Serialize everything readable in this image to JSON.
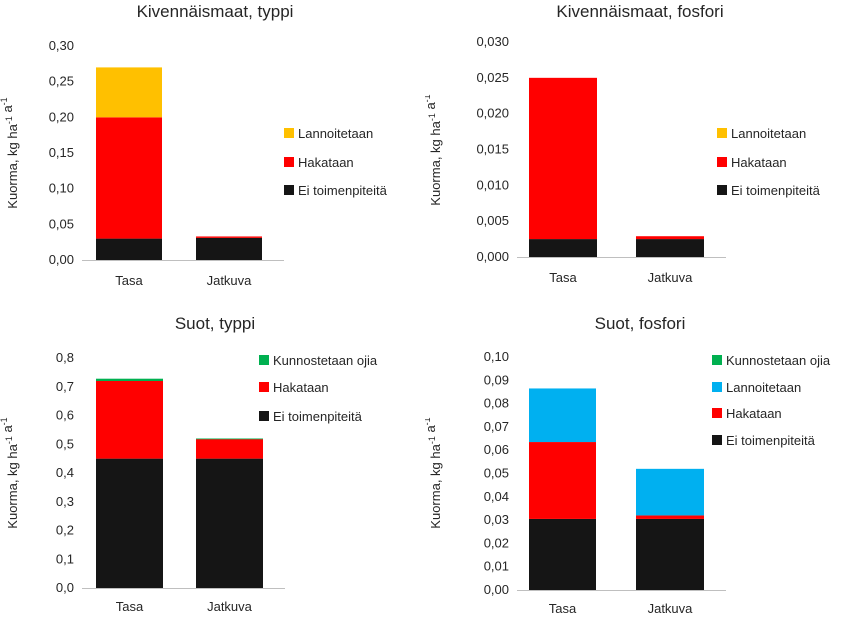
{
  "chart_data": [
    {
      "type": "bar",
      "stacked": true,
      "title": "Kivennäismaat, typpi",
      "ylabel": "Kuorma, kg ha-1 a-1",
      "categories": [
        "Tasa",
        "Jatkuva"
      ],
      "ylim": [
        0,
        0.3
      ],
      "yticks": [
        "0,00",
        "0,05",
        "0,10",
        "0,15",
        "0,20",
        "0,25",
        "0,30"
      ],
      "legend_position": "right",
      "series": [
        {
          "name": "Ei toimenpiteitä",
          "color": "#151515",
          "values": [
            0.03,
            0.031
          ]
        },
        {
          "name": "Hakataan",
          "color": "#ff0000",
          "values": [
            0.17,
            0.002
          ]
        },
        {
          "name": "Lannoitetaan",
          "color": "#ffc000",
          "values": [
            0.07,
            0
          ]
        }
      ]
    },
    {
      "type": "bar",
      "stacked": true,
      "title": "Kivennäismaat, fosfori",
      "ylabel": "Kuorma, kg ha-1 a-1",
      "categories": [
        "Tasa",
        "Jatkuva"
      ],
      "ylim": [
        0,
        0.03
      ],
      "yticks": [
        "0,000",
        "0,005",
        "0,010",
        "0,015",
        "0,020",
        "0,025",
        "0,030"
      ],
      "legend_position": "right",
      "series": [
        {
          "name": "Ei toimenpiteitä",
          "color": "#151515",
          "values": [
            0.0025,
            0.0025
          ]
        },
        {
          "name": "Hakataan",
          "color": "#ff0000",
          "values": [
            0.0225,
            0.0004
          ]
        },
        {
          "name": "Lannoitetaan",
          "color": "#ffc000",
          "values": [
            0,
            0
          ]
        }
      ]
    },
    {
      "type": "bar",
      "stacked": true,
      "title": "Suot, typpi",
      "ylabel": "Kuorma, kg ha-1 a-1",
      "categories": [
        "Tasa",
        "Jatkuva"
      ],
      "ylim": [
        0,
        0.8
      ],
      "yticks": [
        "0,0",
        "0,1",
        "0,2",
        "0,3",
        "0,4",
        "0,5",
        "0,6",
        "0,7",
        "0,8"
      ],
      "legend_position": "right",
      "series": [
        {
          "name": "Ei toimenpiteitä",
          "color": "#151515",
          "values": [
            0.45,
            0.45
          ]
        },
        {
          "name": "Hakataan",
          "color": "#ff0000",
          "values": [
            0.27,
            0.068
          ]
        },
        {
          "name": "Kunnostetaan ojia",
          "color": "#00b050",
          "values": [
            0.008,
            0.002
          ]
        }
      ]
    },
    {
      "type": "bar",
      "stacked": true,
      "title": "Suot, fosfori",
      "ylabel": "Kuorma, kg ha-1 a-1",
      "categories": [
        "Tasa",
        "Jatkuva"
      ],
      "ylim": [
        0,
        0.1
      ],
      "yticks": [
        "0,00",
        "0,01",
        "0,02",
        "0,03",
        "0,04",
        "0,05",
        "0,06",
        "0,07",
        "0,08",
        "0,09",
        "0,10"
      ],
      "legend_position": "right",
      "series": [
        {
          "name": "Ei toimenpiteitä",
          "color": "#151515",
          "values": [
            0.0305,
            0.0305
          ]
        },
        {
          "name": "Hakataan",
          "color": "#ff0000",
          "values": [
            0.033,
            0.0015
          ]
        },
        {
          "name": "Lannoitetaan",
          "color": "#00b0f0",
          "values": [
            0.023,
            0.02
          ]
        },
        {
          "name": "Kunnostetaan ojia",
          "color": "#00b050",
          "values": [
            0,
            0
          ]
        }
      ]
    }
  ]
}
